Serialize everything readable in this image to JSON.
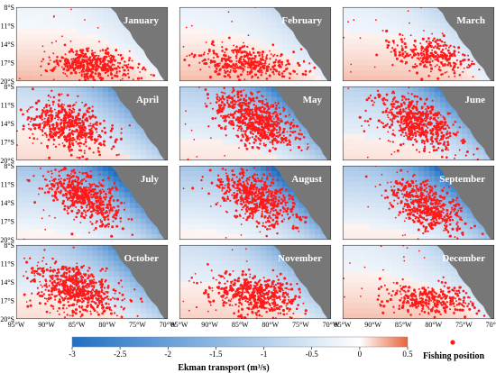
{
  "months": [
    {
      "name": "January",
      "ekman_level": 0.15,
      "fish_center": [
        0.5,
        0.78
      ],
      "fish_spread": [
        0.3,
        0.22
      ],
      "fish_count": 420
    },
    {
      "name": "February",
      "ekman_level": 0.2,
      "fish_center": [
        0.45,
        0.75
      ],
      "fish_spread": [
        0.35,
        0.25
      ],
      "fish_count": 380
    },
    {
      "name": "March",
      "ekman_level": 0.22,
      "fish_center": [
        0.6,
        0.65
      ],
      "fish_spread": [
        0.3,
        0.3
      ],
      "fish_count": 300
    },
    {
      "name": "April",
      "ekman_level": 0.55,
      "fish_center": [
        0.35,
        0.55
      ],
      "fish_spread": [
        0.28,
        0.4
      ],
      "fish_count": 520
    },
    {
      "name": "May",
      "ekman_level": 0.7,
      "fish_center": [
        0.5,
        0.45
      ],
      "fish_spread": [
        0.25,
        0.4
      ],
      "fish_count": 700
    },
    {
      "name": "June",
      "ekman_level": 0.65,
      "fish_center": [
        0.5,
        0.5
      ],
      "fish_spread": [
        0.25,
        0.42
      ],
      "fish_count": 600
    },
    {
      "name": "July",
      "ekman_level": 0.85,
      "fish_center": [
        0.45,
        0.4
      ],
      "fish_spread": [
        0.22,
        0.42
      ],
      "fish_count": 550
    },
    {
      "name": "August",
      "ekman_level": 0.85,
      "fish_center": [
        0.52,
        0.45
      ],
      "fish_spread": [
        0.25,
        0.42
      ],
      "fish_count": 600
    },
    {
      "name": "September",
      "ekman_level": 0.8,
      "fish_center": [
        0.55,
        0.55
      ],
      "fish_spread": [
        0.22,
        0.4
      ],
      "fish_count": 520
    },
    {
      "name": "October",
      "ekman_level": 0.6,
      "fish_center": [
        0.4,
        0.6
      ],
      "fish_spread": [
        0.28,
        0.4
      ],
      "fish_count": 620
    },
    {
      "name": "November",
      "ekman_level": 0.45,
      "fish_center": [
        0.5,
        0.68
      ],
      "fish_spread": [
        0.3,
        0.3
      ],
      "fish_count": 520
    },
    {
      "name": "December",
      "ekman_level": 0.25,
      "fish_center": [
        0.6,
        0.75
      ],
      "fish_spread": [
        0.35,
        0.25
      ],
      "fish_count": 360
    }
  ],
  "lat_labels": [
    "8°S",
    "11°S",
    "14°S",
    "17°S",
    "20°S"
  ],
  "lon_labels": [
    "95°W",
    "90°W",
    "85°W",
    "80°W",
    "75°W",
    "70°W"
  ],
  "colorbar": {
    "ticks": [
      "-3",
      "-2.5",
      "-2",
      "-1.5",
      "-1",
      "-0.5",
      "0",
      "0.5"
    ],
    "label": "Ekman transport",
    "unit": "(m³/s)",
    "min": -3,
    "max": 0.5,
    "color_negative": "#1f6fc4",
    "color_zero": "#ffffff",
    "color_positive": "#e8643a"
  },
  "legend": {
    "label": "Fishing position",
    "marker_color": "#ff1a1a"
  },
  "land_color": "#777777"
}
